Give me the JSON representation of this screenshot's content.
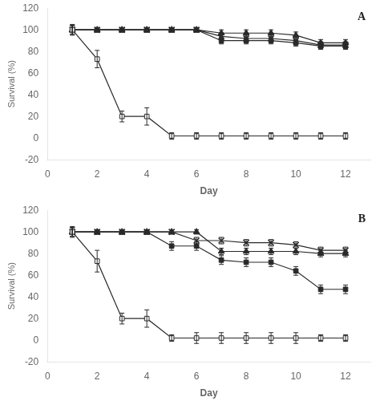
{
  "chart_data": [
    {
      "type": "line",
      "annotations": [
        "A"
      ],
      "xlabel": "Day",
      "ylabel": "Survival (%)",
      "x": [
        1,
        2,
        3,
        4,
        5,
        6,
        7,
        8,
        9,
        10,
        11,
        12
      ],
      "xlim": [
        0,
        13
      ],
      "xticks": [
        0,
        2,
        4,
        6,
        8,
        10,
        12
      ],
      "ylim": [
        -20,
        120
      ],
      "yticks": [
        -20,
        0,
        20,
        40,
        60,
        80,
        100,
        120
      ],
      "grid": false,
      "series": [
        {
          "marker": "square_open",
          "color": "#2a2a2a",
          "values": [
            100,
            73,
            20,
            20,
            2,
            2,
            2,
            2,
            2,
            2,
            2,
            2
          ],
          "yerr": [
            5,
            8,
            5,
            8,
            3,
            3,
            3,
            3,
            3,
            3,
            3,
            3
          ]
        },
        {
          "marker": "square",
          "color": "#2a2a2a",
          "values": [
            100,
            100,
            100,
            100,
            100,
            100,
            90,
            90,
            90,
            88,
            85,
            85
          ],
          "yerr": [
            4,
            2,
            2,
            2,
            2,
            2,
            3,
            3,
            3,
            3,
            3,
            3
          ]
        },
        {
          "marker": "triangle",
          "color": "#2a2a2a",
          "values": [
            100,
            100,
            100,
            100,
            100,
            100,
            97,
            97,
            97,
            95,
            88,
            88
          ],
          "yerr": [
            4,
            2,
            2,
            2,
            2,
            2,
            3,
            3,
            3,
            3,
            3,
            3
          ]
        },
        {
          "marker": "x",
          "color": "#2a2a2a",
          "values": [
            100,
            100,
            100,
            100,
            100,
            100,
            94,
            92,
            92,
            90,
            86,
            86
          ],
          "yerr": [
            4,
            2,
            2,
            2,
            2,
            2,
            3,
            3,
            3,
            3,
            3,
            3
          ]
        }
      ]
    },
    {
      "type": "line",
      "annotations": [
        "B"
      ],
      "xlabel": "Day",
      "ylabel": "Survival (%)",
      "x": [
        1,
        2,
        3,
        4,
        5,
        6,
        7,
        8,
        9,
        10,
        11,
        12
      ],
      "xlim": [
        0,
        13
      ],
      "xticks": [
        0,
        2,
        4,
        6,
        8,
        10,
        12
      ],
      "ylim": [
        -20,
        120
      ],
      "yticks": [
        -20,
        0,
        20,
        40,
        60,
        80,
        100,
        120
      ],
      "grid": false,
      "series": [
        {
          "marker": "square_open",
          "color": "#2a2a2a",
          "values": [
            100,
            73,
            20,
            20,
            2,
            2,
            2,
            2,
            2,
            2,
            2,
            2
          ],
          "yerr": [
            5,
            10,
            5,
            8,
            3,
            5,
            5,
            5,
            5,
            5,
            3,
            3
          ]
        },
        {
          "marker": "square",
          "color": "#2a2a2a",
          "values": [
            100,
            100,
            100,
            100,
            87,
            87,
            74,
            72,
            72,
            64,
            47,
            47
          ],
          "yerr": [
            4,
            2,
            2,
            2,
            4,
            4,
            4,
            4,
            4,
            4,
            4,
            4
          ]
        },
        {
          "marker": "triangle",
          "color": "#2a2a2a",
          "values": [
            100,
            100,
            100,
            100,
            100,
            100,
            82,
            82,
            82,
            82,
            80,
            80
          ],
          "yerr": [
            4,
            2,
            2,
            2,
            2,
            2,
            3,
            3,
            3,
            3,
            3,
            3
          ]
        },
        {
          "marker": "x",
          "color": "#2a2a2a",
          "values": [
            100,
            100,
            100,
            100,
            100,
            92,
            92,
            90,
            90,
            88,
            83,
            83
          ],
          "yerr": [
            4,
            2,
            2,
            2,
            2,
            3,
            3,
            3,
            3,
            3,
            3,
            3
          ]
        }
      ]
    }
  ]
}
